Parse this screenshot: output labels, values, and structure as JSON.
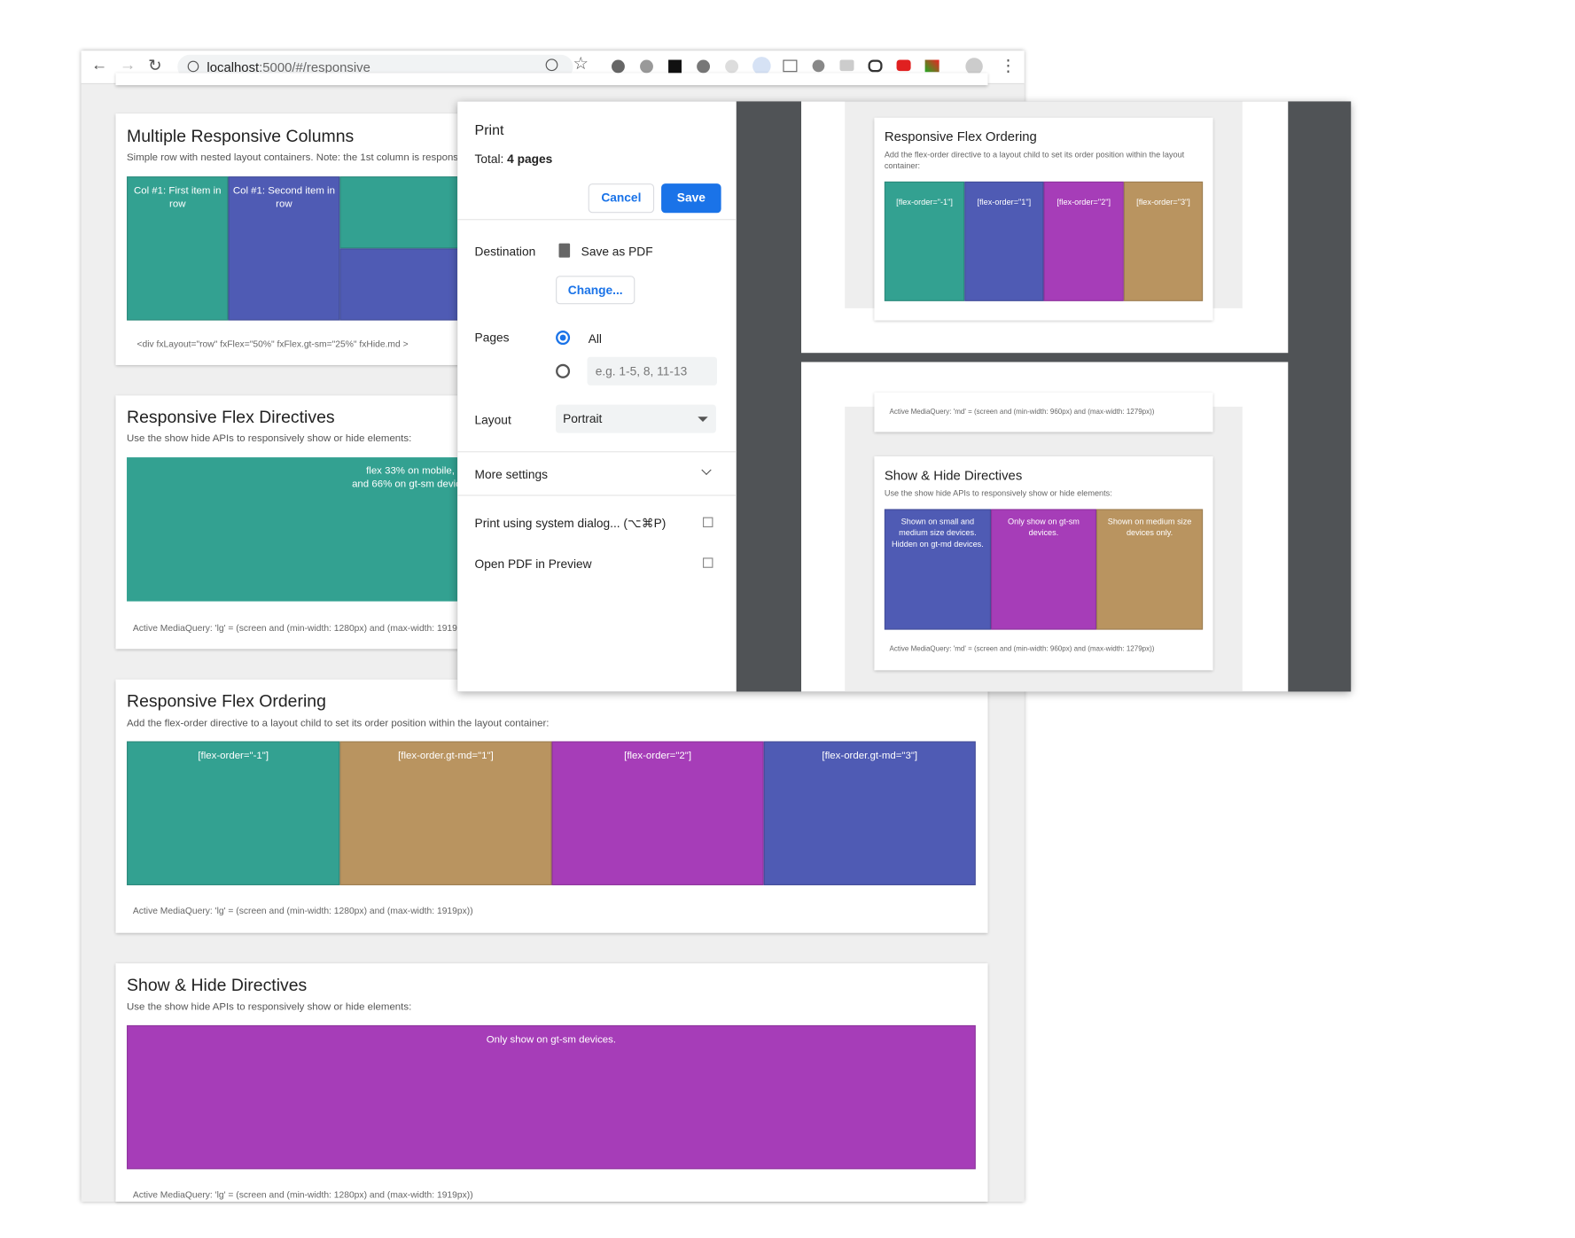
{
  "browser": {
    "url_host": "localhost",
    "url_path": ":5000/#/responsive"
  },
  "page_cards": [
    {
      "title": "Multiple Responsive Columns",
      "description": "Simple row with nested layout containers. Note: the 1st column is responsi",
      "boxes": [
        "Col #1: First item in row",
        "Col #1: Second item in row"
      ],
      "footer": "<div fxLayout=\"row\" fxFlex=\"50%\" fxFlex.gt-sm=\"25%\" fxHide.md >"
    },
    {
      "title": "Responsive Flex Directives",
      "description": "Use the show hide APIs to responsively show or hide elements:",
      "boxes": [
        "flex 33% on mobile,",
        "and 66% on gt-sm devic"
      ],
      "footer": "Active MediaQuery: 'lg' = (screen and (min-width: 1280px) and (max-width: 1919p"
    },
    {
      "title": "Responsive Flex Ordering",
      "description": "Add the flex-order directive to a layout child to set its order position within the layout container:",
      "boxes": [
        "[flex-order=\"-1\"]",
        "[flex-order.gt-md=\"1\"]",
        "[flex-order=\"2\"]",
        "[flex-order.gt-md=\"3\"]"
      ],
      "footer": "Active MediaQuery: 'lg' = (screen and (min-width: 1280px) and (max-width: 1919px))"
    },
    {
      "title": "Show & Hide Directives",
      "description": "Use the show hide APIs to responsively show or hide elements:",
      "boxes": [
        "Only show on gt-sm devices."
      ],
      "footer": "Active MediaQuery: 'lg' = (screen and (min-width: 1280px) and (max-width: 1919px))"
    }
  ],
  "print_dialog": {
    "title": "Print",
    "total_label": "Total:",
    "total_value": "4 pages",
    "cancel": "Cancel",
    "save": "Save",
    "destination_label": "Destination",
    "destination_value": "Save as PDF",
    "change": "Change...",
    "pages_label": "Pages",
    "pages_all": "All",
    "pages_placeholder": "e.g. 1-5, 8, 11-13",
    "layout_label": "Layout",
    "layout_value": "Portrait",
    "more_settings": "More settings",
    "system_dialog": "Print using system dialog... (⌥⌘P)",
    "open_preview": "Open PDF in Preview"
  },
  "preview": {
    "page1": {
      "title": "Responsive Flex Ordering",
      "description": "Add the flex-order directive to a layout child to set its order position within the layout container:",
      "boxes": [
        "[flex-order=\"-1\"]",
        "[flex-order=\"1\"]",
        "[flex-order=\"2\"]",
        "[flex-order=\"3\"]"
      ]
    },
    "page2": {
      "prev_footer": "Active MediaQuery: 'md' = (screen and (min-width: 960px) and (max-width: 1279px))",
      "title": "Show & Hide Directives",
      "description": "Use the show hide APIs to responsively show or hide elements:",
      "boxes": [
        "Shown on small and medium size devices. Hidden on gt-md devices.",
        "Only show on gt-sm devices.",
        "Shown on medium size devices only."
      ],
      "footer": "Active MediaQuery: 'md' = (screen and (min-width: 960px) and (max-width: 1279px))"
    }
  }
}
